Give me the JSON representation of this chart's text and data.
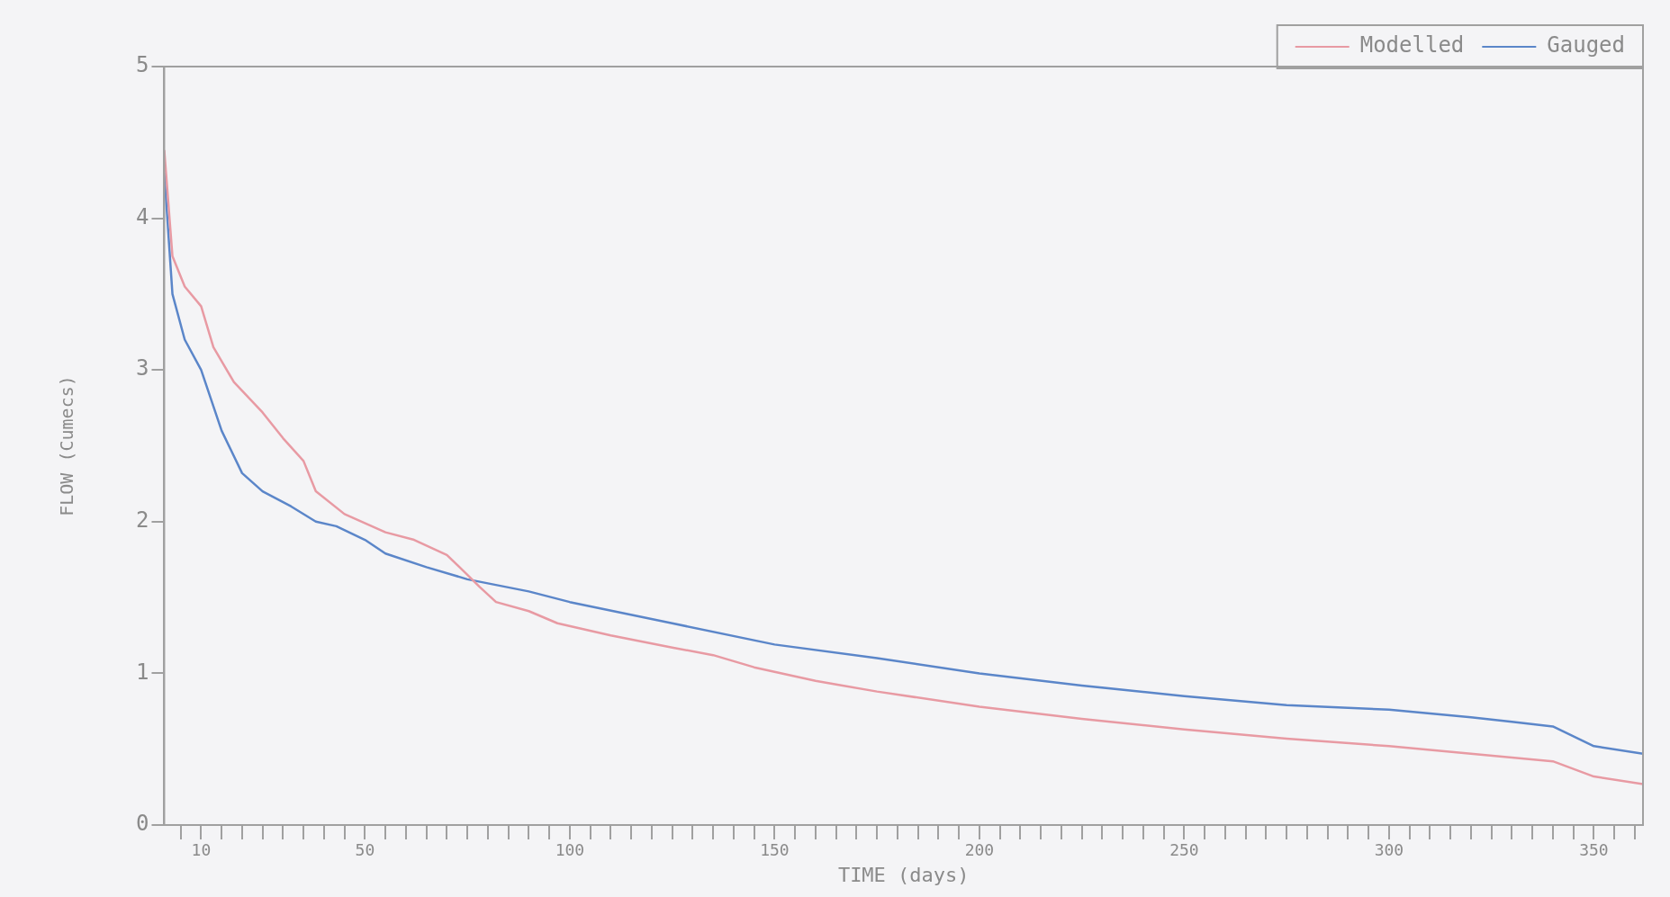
{
  "chart_data": {
    "type": "line",
    "xlabel": "TIME (days)",
    "ylabel": "FLOW (Cumecs)",
    "xlim": [
      1,
      362
    ],
    "ylim": [
      0,
      5
    ],
    "yticks": [
      0,
      1,
      2,
      3,
      4,
      5
    ],
    "xticks": [
      {
        "value": 5,
        "label": null
      },
      {
        "value": 10,
        "label": "10"
      },
      {
        "value": 15,
        "label": null
      },
      {
        "value": 20,
        "label": null
      },
      {
        "value": 25,
        "label": null
      },
      {
        "value": 30,
        "label": null
      },
      {
        "value": 35,
        "label": null
      },
      {
        "value": 40,
        "label": null
      },
      {
        "value": 45,
        "label": null
      },
      {
        "value": 50,
        "label": "50"
      },
      {
        "value": 55,
        "label": null
      },
      {
        "value": 60,
        "label": null
      },
      {
        "value": 65,
        "label": null
      },
      {
        "value": 70,
        "label": null
      },
      {
        "value": 75,
        "label": null
      },
      {
        "value": 80,
        "label": null
      },
      {
        "value": 85,
        "label": null
      },
      {
        "value": 90,
        "label": null
      },
      {
        "value": 95,
        "label": null
      },
      {
        "value": 100,
        "label": "100"
      },
      {
        "value": 105,
        "label": null
      },
      {
        "value": 110,
        "label": null
      },
      {
        "value": 115,
        "label": null
      },
      {
        "value": 120,
        "label": null
      },
      {
        "value": 125,
        "label": null
      },
      {
        "value": 130,
        "label": null
      },
      {
        "value": 135,
        "label": null
      },
      {
        "value": 140,
        "label": null
      },
      {
        "value": 145,
        "label": null
      },
      {
        "value": 150,
        "label": "150"
      },
      {
        "value": 155,
        "label": null
      },
      {
        "value": 160,
        "label": null
      },
      {
        "value": 165,
        "label": null
      },
      {
        "value": 170,
        "label": null
      },
      {
        "value": 175,
        "label": null
      },
      {
        "value": 180,
        "label": null
      },
      {
        "value": 185,
        "label": null
      },
      {
        "value": 190,
        "label": null
      },
      {
        "value": 195,
        "label": null
      },
      {
        "value": 200,
        "label": "200"
      },
      {
        "value": 205,
        "label": null
      },
      {
        "value": 210,
        "label": null
      },
      {
        "value": 215,
        "label": null
      },
      {
        "value": 220,
        "label": null
      },
      {
        "value": 225,
        "label": null
      },
      {
        "value": 230,
        "label": null
      },
      {
        "value": 235,
        "label": null
      },
      {
        "value": 240,
        "label": null
      },
      {
        "value": 245,
        "label": null
      },
      {
        "value": 250,
        "label": "250"
      },
      {
        "value": 255,
        "label": null
      },
      {
        "value": 260,
        "label": null
      },
      {
        "value": 265,
        "label": null
      },
      {
        "value": 270,
        "label": null
      },
      {
        "value": 275,
        "label": null
      },
      {
        "value": 280,
        "label": null
      },
      {
        "value": 285,
        "label": null
      },
      {
        "value": 290,
        "label": null
      },
      {
        "value": 295,
        "label": null
      },
      {
        "value": 300,
        "label": "300"
      },
      {
        "value": 305,
        "label": null
      },
      {
        "value": 310,
        "label": null
      },
      {
        "value": 315,
        "label": null
      },
      {
        "value": 320,
        "label": null
      },
      {
        "value": 325,
        "label": null
      },
      {
        "value": 330,
        "label": null
      },
      {
        "value": 335,
        "label": null
      },
      {
        "value": 340,
        "label": null
      },
      {
        "value": 345,
        "label": null
      },
      {
        "value": 350,
        "label": "350"
      },
      {
        "value": 355,
        "label": null
      },
      {
        "value": 360,
        "label": null
      }
    ],
    "grid": false,
    "legend": "top right",
    "marker": "none",
    "line_style": "solid",
    "series": [
      {
        "name": "Modelled",
        "color": "#e89aa3",
        "x": [
          1,
          3,
          6,
          10,
          13,
          18,
          25,
          30,
          35,
          38,
          45,
          55,
          62,
          70,
          75,
          78,
          82,
          90,
          97,
          110,
          125,
          135,
          145,
          160,
          175,
          200,
          225,
          250,
          275,
          300,
          320,
          340,
          350,
          362
        ],
        "values": [
          4.45,
          3.75,
          3.55,
          3.42,
          3.15,
          2.92,
          2.72,
          2.55,
          2.4,
          2.2,
          2.05,
          1.93,
          1.88,
          1.78,
          1.65,
          1.57,
          1.47,
          1.41,
          1.33,
          1.25,
          1.17,
          1.12,
          1.04,
          0.95,
          0.88,
          0.78,
          0.7,
          0.63,
          0.57,
          0.52,
          0.47,
          0.42,
          0.32,
          0.27
        ]
      },
      {
        "name": "Gauged",
        "color": "#5b86c9",
        "x": [
          1,
          3,
          6,
          10,
          15,
          20,
          25,
          32,
          38,
          43,
          50,
          55,
          65,
          75,
          90,
          100,
          125,
          150,
          175,
          200,
          225,
          250,
          275,
          300,
          320,
          330,
          340,
          350,
          362
        ],
        "values": [
          4.3,
          3.5,
          3.2,
          3.0,
          2.6,
          2.32,
          2.2,
          2.1,
          2.0,
          1.97,
          1.88,
          1.79,
          1.7,
          1.62,
          1.54,
          1.47,
          1.33,
          1.19,
          1.1,
          1.0,
          0.92,
          0.85,
          0.79,
          0.76,
          0.71,
          0.68,
          0.65,
          0.52,
          0.47
        ]
      }
    ]
  }
}
